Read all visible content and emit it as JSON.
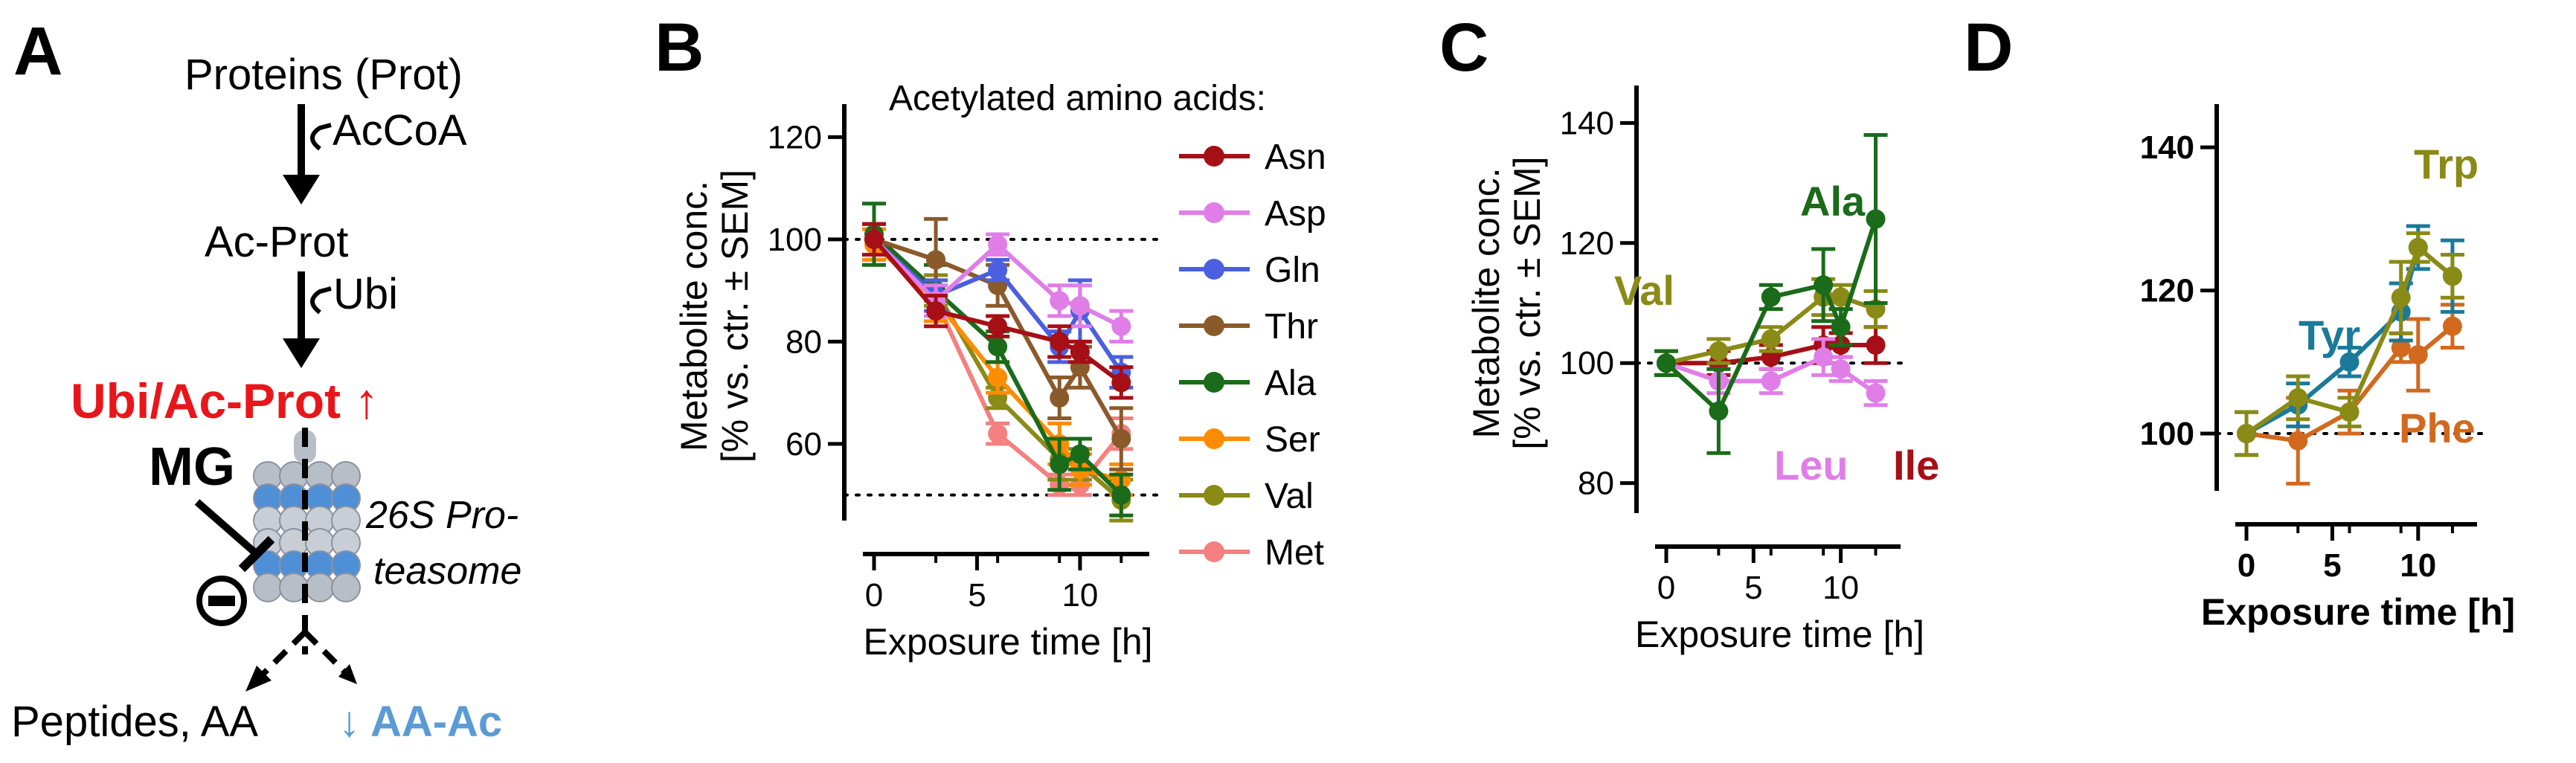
{
  "figure": {
    "panels": {
      "A": {
        "letter": "A",
        "proteins": "Proteins (Prot)",
        "accoa": "AcCoA",
        "acprot": "Ac-Prot",
        "ubi": "Ubi",
        "ubiacprot": "Ubi/Ac-Prot ↑",
        "mg": "MG",
        "proteasome1": "26S Pro-",
        "proteasome2": "teasome",
        "peptides": "Peptides, AA",
        "aaac": "↓ AA-Ac"
      },
      "B": {
        "letter": "B"
      },
      "C": {
        "letter": "C"
      },
      "D": {
        "letter": "D"
      }
    },
    "colors": {
      "up_red": "#e8161b",
      "down_blue": "#5b9bd5",
      "proteasome_grey": "#b8bec8",
      "proteasome_blue": "#4f8fd6"
    }
  },
  "chart_data": [
    {
      "id": "B",
      "type": "line",
      "title": "",
      "xlabel": "Exposure time [h]",
      "ylabel_line1": "Metabolite conc.",
      "ylabel_line2": "[% vs. ctr. ± SEM]",
      "xlim": [
        0,
        13
      ],
      "ylim": [
        45,
        125
      ],
      "xticks": [
        0,
        5,
        10
      ],
      "yticks": [
        60,
        80,
        100,
        120
      ],
      "reference_lines": [
        100,
        50
      ],
      "legend_title": "Acetylated amino acids:",
      "x": [
        0,
        3,
        6,
        9,
        10,
        12
      ],
      "series": [
        {
          "name": "Asn",
          "color": "#a50f15",
          "values": [
            100,
            86,
            83,
            80,
            78,
            72
          ],
          "err": [
            3,
            3,
            2,
            3,
            2,
            3
          ]
        },
        {
          "name": "Asp",
          "color": "#e07ee8",
          "values": [
            100,
            88,
            99,
            88,
            87,
            83
          ],
          "err": [
            3,
            3,
            2,
            3,
            4,
            3
          ]
        },
        {
          "name": "Gln",
          "color": "#4b5fe0",
          "values": [
            100,
            89,
            94,
            79,
            86,
            74
          ],
          "err": [
            3,
            3,
            2,
            3,
            6,
            3
          ]
        },
        {
          "name": "Thr",
          "color": "#8b5a2b",
          "values": [
            100,
            96,
            91,
            69,
            75,
            61
          ],
          "err": [
            3,
            8,
            4,
            4,
            4,
            6
          ]
        },
        {
          "name": "Ala",
          "color": "#1a6b1a",
          "values": [
            101,
            90,
            79,
            56,
            58,
            50
          ],
          "err": [
            6,
            5,
            3,
            5,
            3,
            4
          ]
        },
        {
          "name": "Ser",
          "color": "#ff8c00",
          "values": [
            99,
            88,
            73,
            60,
            55,
            53
          ],
          "err": [
            3,
            4,
            3,
            4,
            3,
            3
          ]
        },
        {
          "name": "Val",
          "color": "#8a8a16",
          "values": [
            100,
            90,
            69,
            57,
            56,
            49
          ],
          "err": [
            3,
            3,
            2,
            4,
            3,
            4
          ]
        },
        {
          "name": "Met",
          "color": "#f48080",
          "values": [
            100,
            88,
            62,
            52,
            52,
            62
          ],
          "err": [
            3,
            3,
            2,
            2,
            2,
            3
          ]
        }
      ]
    },
    {
      "id": "C",
      "type": "line",
      "title": "",
      "xlabel": "Exposure time [h]",
      "ylabel_line1": "Metabolite conc.",
      "ylabel_line2": "[% vs. ctr. ± SEM]",
      "xlim": [
        0,
        13
      ],
      "ylim": [
        75,
        145
      ],
      "xticks": [
        0,
        5,
        10
      ],
      "yticks": [
        80,
        100,
        120,
        140
      ],
      "reference_lines": [
        100
      ],
      "x": [
        0,
        3,
        6,
        9,
        10,
        12
      ],
      "series": [
        {
          "name": "Ala",
          "color": "#1a6b1a",
          "values": [
            100,
            92,
            111,
            113,
            106,
            124
          ],
          "err": [
            2,
            7,
            2,
            6,
            3,
            14
          ]
        },
        {
          "name": "Val",
          "color": "#8a8a16",
          "values": [
            100,
            102,
            104,
            111,
            111,
            109
          ],
          "err": [
            2,
            2,
            2,
            3,
            2,
            3
          ]
        },
        {
          "name": "Leu",
          "color": "#e07ee8",
          "values": [
            100,
            97,
            97,
            101,
            99,
            95
          ],
          "err": [
            2,
            2,
            2,
            3,
            2,
            2
          ]
        },
        {
          "name": "Ile",
          "color": "#a50f15",
          "values": [
            100,
            100,
            101,
            103,
            103,
            103
          ],
          "err": [
            2,
            2,
            2,
            3,
            2,
            3
          ]
        }
      ],
      "annotations": [
        {
          "text": "Ala",
          "color": "#1a6b1a"
        },
        {
          "text": "Val",
          "color": "#8a8a16"
        },
        {
          "text": "Leu",
          "color": "#e07ee8"
        },
        {
          "text": "Ile",
          "color": "#a50f15"
        }
      ]
    },
    {
      "id": "D",
      "type": "line",
      "title": "",
      "xlabel": "Exposure time [h]",
      "ylabel_line1": "",
      "ylabel_line2": "",
      "xlim": [
        0,
        13
      ],
      "ylim": [
        92,
        145
      ],
      "xticks": [
        0,
        5,
        10
      ],
      "yticks": [
        100,
        120,
        140
      ],
      "reference_lines": [
        100
      ],
      "x": [
        0,
        3,
        6,
        9,
        10,
        12
      ],
      "series": [
        {
          "name": "Trp",
          "color": "#8a8a16",
          "values": [
            100,
            105,
            103,
            119,
            126,
            122
          ],
          "err": [
            3,
            3,
            2,
            5,
            2,
            3
          ]
        },
        {
          "name": "Tyr",
          "color": "#1b7a9a",
          "values": [
            100,
            104,
            110,
            117,
            126,
            122
          ],
          "err": [
            3,
            3,
            2,
            4,
            3,
            5
          ]
        },
        {
          "name": "Phe",
          "color": "#d2691e",
          "values": [
            100,
            99,
            103,
            112,
            111,
            115
          ],
          "err": [
            3,
            6,
            3,
            2,
            5,
            3
          ]
        }
      ],
      "annotations": [
        {
          "text": "Trp",
          "color": "#8a8a16"
        },
        {
          "text": "Tyr",
          "color": "#1b7a9a"
        },
        {
          "text": "Phe",
          "color": "#d2691e"
        }
      ]
    }
  ]
}
